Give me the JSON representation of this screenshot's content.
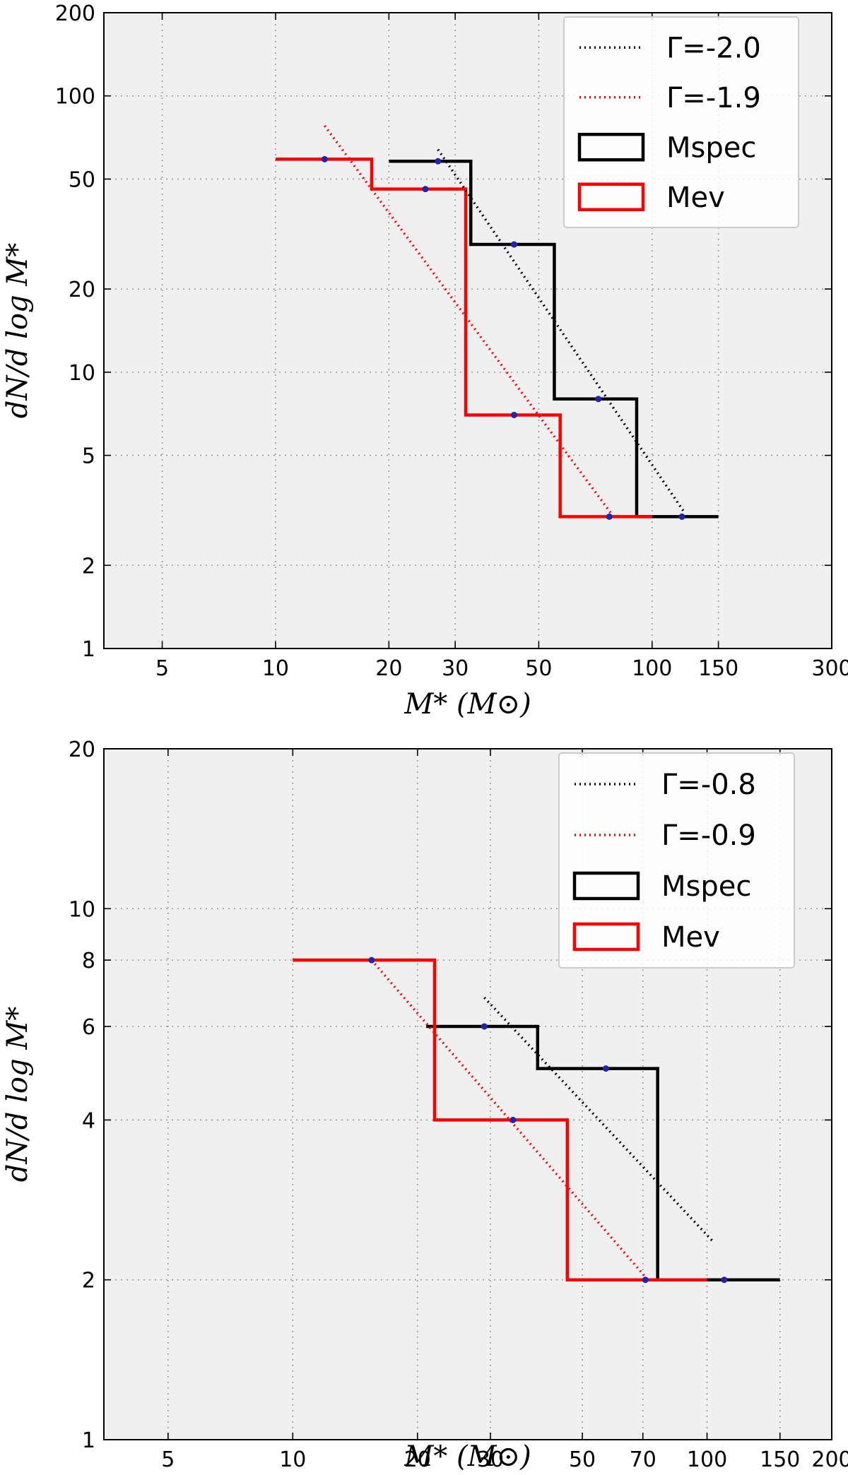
{
  "chart_data": [
    {
      "type": "line",
      "xscale": "log",
      "yscale": "log",
      "xlim": [
        3.5,
        300
      ],
      "ylim": [
        1,
        200
      ],
      "xticks": [
        5,
        10,
        20,
        30,
        50,
        100,
        150,
        300
      ],
      "xtick_labels": [
        "5",
        "10",
        "20",
        "30",
        "50",
        "100",
        "150",
        "300"
      ],
      "yticks": [
        1,
        2,
        5,
        10,
        20,
        50,
        100,
        200
      ],
      "ytick_labels": [
        "1",
        "2",
        "5",
        "10",
        "20",
        "50",
        "100",
        "200"
      ],
      "xlabel": "M* (M⊙)",
      "ylabel": "dN/d log M*",
      "grid": true,
      "legend_position": "top-right",
      "legend": [
        {
          "label": "Γ=-2.0",
          "color": "#000000",
          "kind": "dotted"
        },
        {
          "label": "Γ=-1.9",
          "color": "#ff0000",
          "kind": "dotted"
        },
        {
          "label": "Mspec",
          "color": "#000000",
          "kind": "box"
        },
        {
          "label": "Mev",
          "color": "#ff0000",
          "kind": "box"
        }
      ],
      "series": [
        {
          "name": "Mspec",
          "kind": "step",
          "color": "#000000",
          "edges": [
            20,
            33,
            55,
            91,
            150
          ],
          "values": [
            58,
            29,
            8,
            3
          ],
          "points": [
            [
              27,
              58
            ],
            [
              43,
              29
            ],
            [
              72,
              8
            ],
            [
              120,
              3
            ]
          ]
        },
        {
          "name": "Mev",
          "kind": "step",
          "color": "#ff0000",
          "edges": [
            10,
            18,
            32,
            57,
            100
          ],
          "values": [
            59,
            46,
            7,
            3
          ],
          "points": [
            [
              13.5,
              59
            ],
            [
              25,
              46
            ],
            [
              43,
              7
            ],
            [
              77,
              3
            ]
          ]
        },
        {
          "name": "Γ=-2.0",
          "kind": "fit",
          "color": "#000000",
          "x": [
            27,
            122
          ],
          "y": [
            64,
            3.1
          ]
        },
        {
          "name": "Γ=-1.9",
          "kind": "fit",
          "color": "#ff0000",
          "x": [
            13.5,
            79
          ],
          "y": [
            78,
            3.0
          ]
        }
      ]
    },
    {
      "type": "line",
      "xscale": "log",
      "yscale": "log",
      "xlim": [
        3.5,
        200
      ],
      "ylim": [
        1,
        20
      ],
      "xticks": [
        5,
        10,
        20,
        30,
        50,
        70,
        100,
        150,
        200
      ],
      "xtick_labels": [
        "5",
        "10",
        "20",
        "30",
        "50",
        "70",
        "100",
        "150",
        "200"
      ],
      "yticks": [
        1,
        2,
        4,
        6,
        8,
        10,
        20
      ],
      "ytick_labels": [
        "1",
        "2",
        "4",
        "6",
        "8",
        "10",
        "20"
      ],
      "xlabel": "M* (M⊙)",
      "ylabel": "dN/d log M*",
      "grid": true,
      "legend_position": "top-right",
      "legend": [
        {
          "label": "Γ=-0.8",
          "color": "#000000",
          "kind": "dotted"
        },
        {
          "label": "Γ=-0.9",
          "color": "#ff0000",
          "kind": "dotted"
        },
        {
          "label": "Mspec",
          "color": "#000000",
          "kind": "box"
        },
        {
          "label": "Mev",
          "color": "#ff0000",
          "kind": "box"
        }
      ],
      "series": [
        {
          "name": "Mspec",
          "kind": "step",
          "color": "#000000",
          "edges": [
            21,
            39,
            76,
            150
          ],
          "values": [
            6,
            5,
            2
          ],
          "points": [
            [
              29,
              6
            ],
            [
              57,
              5
            ],
            [
              110,
              2
            ]
          ]
        },
        {
          "name": "Mev",
          "kind": "step",
          "color": "#ff0000",
          "edges": [
            10,
            22,
            46,
            100
          ],
          "values": [
            8,
            4,
            2
          ],
          "points": [
            [
              15.5,
              8
            ],
            [
              34,
              4
            ],
            [
              71,
              2
            ]
          ]
        },
        {
          "name": "Γ=-0.8",
          "kind": "fit",
          "color": "#000000",
          "x": [
            29,
            104
          ],
          "y": [
            6.8,
            2.35
          ]
        },
        {
          "name": "Γ=-0.9",
          "kind": "fit",
          "color": "#ff0000",
          "x": [
            15.5,
            72
          ],
          "y": [
            8,
            2.0
          ]
        }
      ]
    }
  ]
}
